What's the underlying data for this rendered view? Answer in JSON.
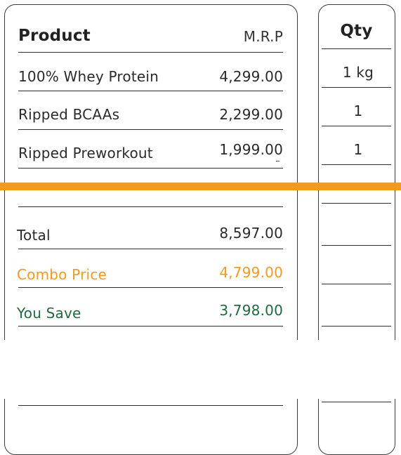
{
  "table": {
    "product_header": "Product",
    "mrp_header": "M.R.P",
    "qty_header": "Qty",
    "items": [
      {
        "name": "100% Whey Protein",
        "mrp": "4,299.00",
        "qty": "1 kg"
      },
      {
        "name": "Ripped BCAAs",
        "mrp": "2,299.00",
        "qty": "1"
      },
      {
        "name": "Ripped Preworkout",
        "mrp": "1,999.00",
        "qty": "1"
      }
    ],
    "summary": {
      "total_label": "Total",
      "total_value": "8,597.00",
      "combo_label": "Combo Price",
      "combo_value": "4,799.00",
      "save_label": "You Save",
      "save_value": "3,798.00"
    }
  },
  "colors": {
    "accent": "#f29a1f",
    "save": "#1f6a3e",
    "border": "#3a3a3a"
  }
}
